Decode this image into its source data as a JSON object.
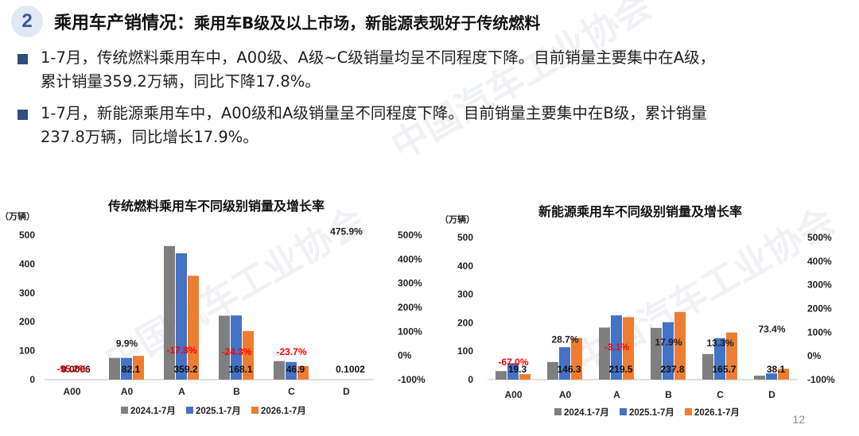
{
  "header": {
    "number": "2",
    "title": "乘用车产销情况：",
    "subtitle": "乘用车B级及以上市场，新能源表现好于传统燃料"
  },
  "bullets": [
    {
      "lines": [
        "1-7月，传统燃料乘用车中，A00级、A级~C级销量均呈不同程度下降。目前销量主要集中在A级，",
        "累计销量359.2万辆，同比下降17.8%。"
      ]
    },
    {
      "lines": [
        "1-7月，新能源乘用车中，A00级和A级销量呈不同程度下降。目前销量主要集中在B级，累计销量",
        "237.8万辆，同比增长17.9%。"
      ]
    }
  ],
  "watermark": "中国汽车工业协会",
  "page_number": "12",
  "colors": {
    "s2024": "#7f7f7f",
    "s2025": "#4472c4",
    "s2026": "#ed7d31",
    "growth_neg": "#ff0000",
    "growth_pos": "#1f1f1f",
    "accent": "#2f4e7e"
  },
  "chart_data": [
    {
      "type": "bar",
      "title": "传统燃料乘用车不同级别销量及增长率",
      "ylabel": "（万辆）",
      "ylim": [
        0,
        500
      ],
      "yticks": [
        "0",
        "100",
        "200",
        "300",
        "400",
        "500"
      ],
      "y2lim": [
        -100,
        500
      ],
      "y2ticks": [
        "-100%",
        "0%",
        "100%",
        "200%",
        "300%",
        "400%",
        "500%"
      ],
      "categories": [
        "A00",
        "A0",
        "A",
        "B",
        "C",
        "D"
      ],
      "series": [
        {
          "name": "2024.1-7月",
          "values": [
            0.01,
            75,
            462,
            221,
            64,
            0.05
          ]
        },
        {
          "name": "2025.1-7月",
          "values": [
            0.01,
            75,
            437,
            222,
            61,
            0.02
          ]
        },
        {
          "name": "2026.1-7月",
          "values": [
            0.0006,
            82.1,
            359.2,
            168.1,
            46.9,
            0.1002
          ]
        }
      ],
      "value_labels": [
        "0.0006",
        "82.1",
        "359.2",
        "168.1",
        "46.9",
        "0.1002"
      ],
      "growth": [
        "-95.2%",
        "9.9%",
        "-17.8%",
        "-24.3%",
        "-23.7%",
        "475.9%"
      ],
      "growth_values": [
        -95.2,
        9.9,
        -17.8,
        -24.3,
        -23.7,
        475.9
      ],
      "legend": "bottom"
    },
    {
      "type": "bar",
      "title": "新能源乘用车不同级别销量及增长率",
      "ylabel": "（万辆）",
      "ylim": [
        0,
        500
      ],
      "yticks": [
        "0",
        "100",
        "200",
        "300",
        "400",
        "500"
      ],
      "y2lim": [
        -100,
        500
      ],
      "y2ticks": [
        "-100%",
        "0%",
        "100%",
        "200%",
        "300%",
        "400%",
        "500%"
      ],
      "categories": [
        "A00",
        "A0",
        "A",
        "B",
        "C",
        "D"
      ],
      "series": [
        {
          "name": "2024.1-7月",
          "values": [
            30,
            62,
            183,
            182,
            90,
            14
          ]
        },
        {
          "name": "2025.1-7月",
          "values": [
            58,
            114,
            226,
            202,
            146,
            22
          ]
        },
        {
          "name": "2026.1-7月",
          "values": [
            19.3,
            146.3,
            219.5,
            237.8,
            165.7,
            38.1
          ]
        }
      ],
      "value_labels": [
        "19.3",
        "146.3",
        "219.5",
        "237.8",
        "165.7",
        "38.1"
      ],
      "growth": [
        "-67.0%",
        "28.7%",
        "-3.1%",
        "17.9%",
        "13.3%",
        "73.4%"
      ],
      "growth_values": [
        -67.0,
        28.7,
        -3.1,
        17.9,
        13.3,
        73.4
      ],
      "legend": "bottom"
    }
  ]
}
